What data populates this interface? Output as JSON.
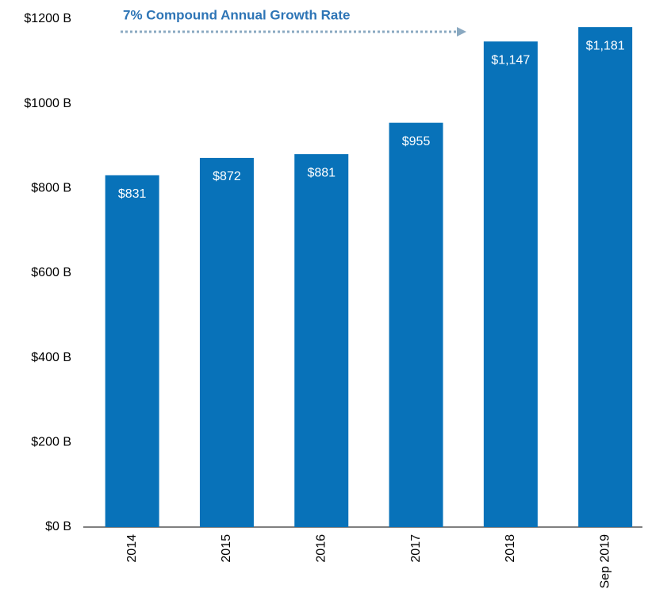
{
  "chart_data": {
    "type": "bar",
    "annotation": "7% Compound Annual Growth Rate",
    "categories": [
      "2014",
      "2015",
      "2016",
      "2017",
      "2018",
      "Sep 2019"
    ],
    "values": [
      831,
      872,
      881,
      955,
      1147,
      1181
    ],
    "value_labels": [
      "$831",
      "$872",
      "$881",
      "$955",
      "$1,147",
      "$1,181"
    ],
    "color": "#0872b9",
    "ylim": [
      0,
      1200
    ],
    "yticks": [
      {
        "value": 0,
        "label": "$0 B"
      },
      {
        "value": 200,
        "label": "$200 B"
      },
      {
        "value": 400,
        "label": "$400 B"
      },
      {
        "value": 600,
        "label": "$600 B"
      },
      {
        "value": 800,
        "label": "$800 B"
      },
      {
        "value": 1000,
        "label": "$1000 B"
      },
      {
        "value": 1200,
        "label": "$1200 B"
      }
    ],
    "grid": false
  }
}
